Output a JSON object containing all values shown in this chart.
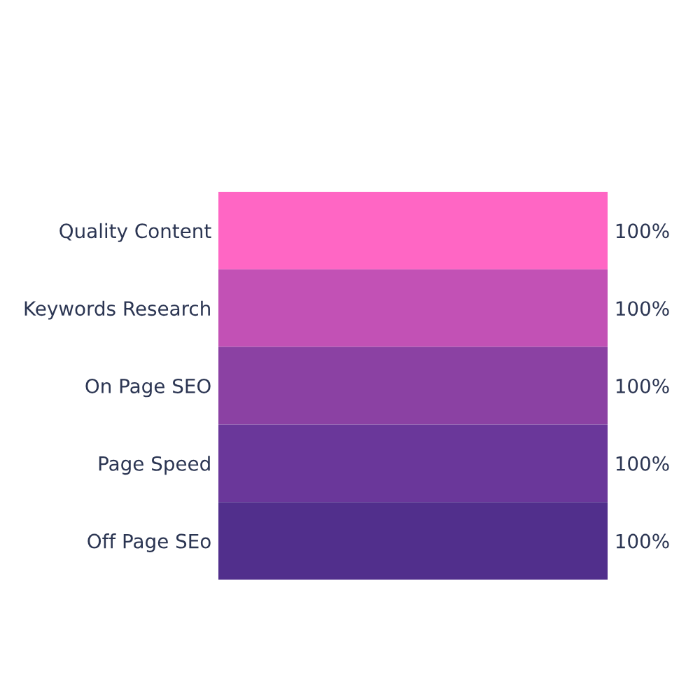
{
  "chart_data": {
    "type": "bar",
    "orientation": "horizontal",
    "categories": [
      "Quality Content",
      "Keywords Research",
      "On Page SEO",
      "Page Speed",
      "Off Page SEo"
    ],
    "values": [
      100,
      100,
      100,
      100,
      100
    ],
    "colors": [
      "#ff66c4",
      "#c251b5",
      "#8b41a3",
      "#6a379a",
      "#512f8c"
    ],
    "value_labels": [
      "100%",
      "100%",
      "100%",
      "100%",
      "100%"
    ],
    "grid": false,
    "legend": false,
    "tick_labels": "y"
  }
}
